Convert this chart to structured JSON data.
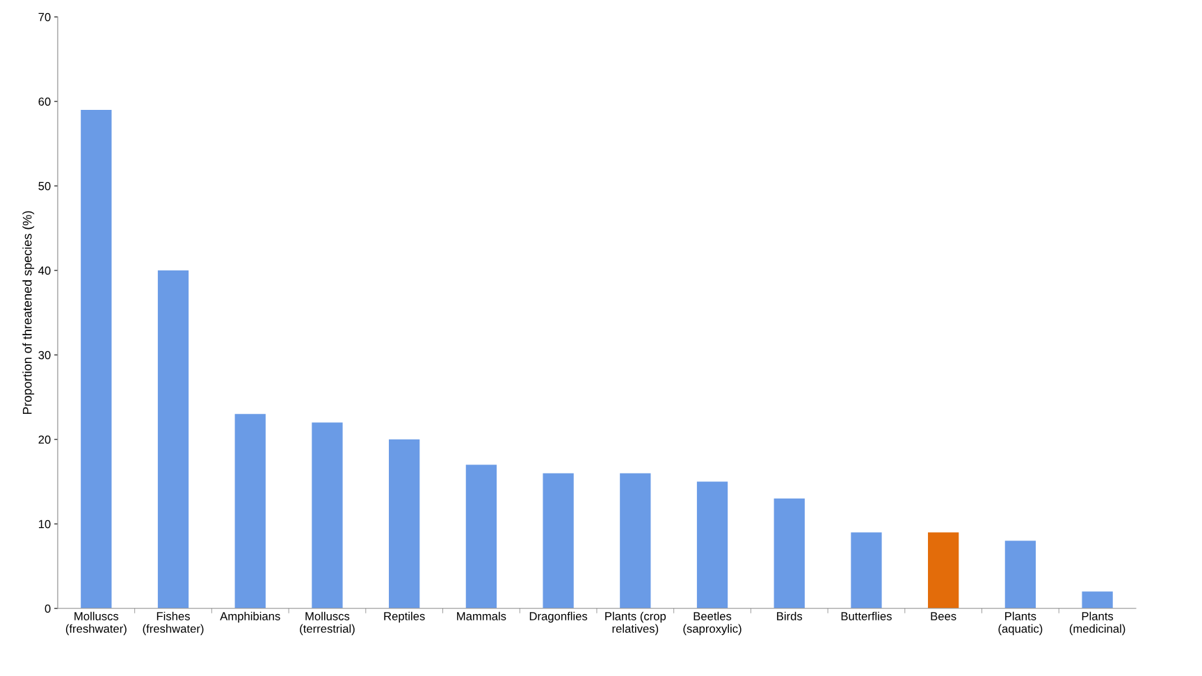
{
  "chart_data": {
    "type": "bar",
    "ylabel": "Proportion of threatened species (%)",
    "categories": [
      "Molluscs\n(freshwater)",
      "Fishes\n(freshwater)",
      "Amphibians",
      "Molluscs\n(terrestrial)",
      "Reptiles",
      "Mammals",
      "Dragonflies",
      "Plants (crop\nrelatives)",
      "Beetles\n(saproxylic)",
      "Birds",
      "Butterflies",
      "Bees",
      "Plants\n(aquatic)",
      "Plants\n(medicinal)"
    ],
    "values": [
      59,
      40,
      23,
      22,
      20,
      17,
      16,
      16,
      15,
      13,
      9,
      9,
      8,
      2
    ],
    "colors": [
      "#6a9be6",
      "#6a9be6",
      "#6a9be6",
      "#6a9be6",
      "#6a9be6",
      "#6a9be6",
      "#6a9be6",
      "#6a9be6",
      "#6a9be6",
      "#6a9be6",
      "#6a9be6",
      "#e36c0a",
      "#6a9be6",
      "#6a9be6"
    ],
    "ylim": [
      0,
      70
    ],
    "yticks": [
      0,
      10,
      20,
      30,
      40,
      50,
      60,
      70
    ],
    "grid": false
  }
}
